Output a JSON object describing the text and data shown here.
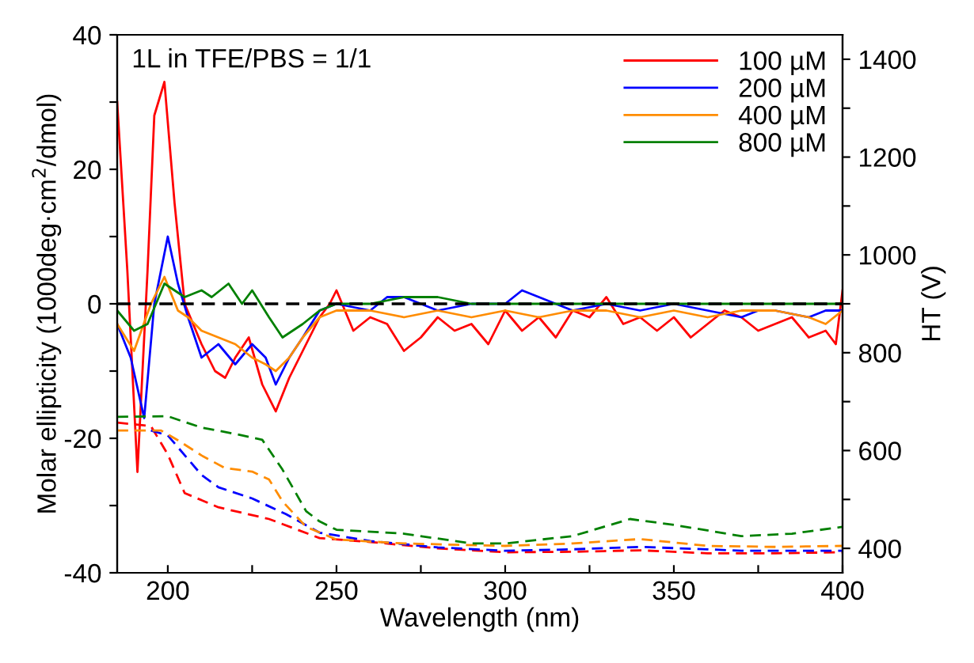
{
  "chart_data": {
    "type": "line",
    "xlabel": "Wavelength (nm)",
    "ylabel": "Molar ellipticity (1000deg·cm$^{2}$/dmol)",
    "y2label": "HT (V)",
    "annotations": [
      "1L in TFE/PBS = 1/1"
    ],
    "xlim": [
      185,
      400
    ],
    "xticks": [
      200,
      {
        "value": 225,
        "label": null
      },
      250,
      {
        "value": 275,
        "label": null
      },
      300,
      {
        "value": 325,
        "label": null
      },
      350,
      {
        "value": 375,
        "label": null
      },
      400
    ],
    "ylim": [
      -40,
      40
    ],
    "yticks": [
      -40,
      {
        "value": -30,
        "label": null
      },
      -20,
      {
        "value": -10,
        "label": null
      },
      0,
      {
        "value": 10,
        "label": null
      },
      20,
      {
        "value": 30,
        "label": null
      },
      40
    ],
    "y2lim": [
      350,
      1450
    ],
    "y2ticks": [
      400,
      {
        "value": 500,
        "label": null
      },
      600,
      {
        "value": 700,
        "label": null
      },
      800,
      {
        "value": 900,
        "label": null
      },
      1000,
      {
        "value": 1100,
        "label": null
      },
      1200,
      {
        "value": 1300,
        "label": null
      },
      1400
    ],
    "ref_lines": [
      {
        "axis": "y",
        "value": 0,
        "color": "#000000",
        "line_style": "dashed"
      }
    ],
    "legend": "top right",
    "grid": false,
    "series": [
      {
        "name": "100 µM",
        "color": "#ff0000",
        "x": [
          185,
          188,
          191,
          194,
          196,
          199,
          202,
          205,
          210,
          214,
          217,
          220,
          224,
          228,
          232,
          236,
          240,
          245,
          248,
          250,
          255,
          260,
          265,
          270,
          275,
          280,
          285,
          290,
          295,
          300,
          305,
          310,
          315,
          320,
          325,
          330,
          335,
          340,
          345,
          350,
          355,
          360,
          365,
          370,
          375,
          380,
          385,
          390,
          395,
          398,
          400
        ],
        "values": [
          30,
          5,
          -25,
          5,
          28,
          33,
          15,
          0,
          -6,
          -10,
          -11,
          -8,
          -5,
          -12,
          -16,
          -11,
          -7,
          -2,
          0,
          2,
          -4,
          -2,
          -3,
          -7,
          -5,
          -2,
          -4,
          -3,
          -6,
          -1,
          -4,
          -2,
          -5,
          -1,
          -2,
          1,
          -3,
          -2,
          -4,
          -2,
          -5,
          -3,
          -1,
          -2,
          -4,
          -3,
          -2,
          -5,
          -4,
          -6,
          2
        ]
      },
      {
        "name": "200 µM",
        "color": "#0000ff",
        "x": [
          185,
          189,
          193,
          196,
          200,
          203,
          206,
          210,
          215,
          220,
          225,
          229,
          232,
          236,
          240,
          245,
          250,
          260,
          265,
          270,
          280,
          290,
          300,
          305,
          310,
          320,
          330,
          340,
          350,
          360,
          370,
          375,
          380,
          390,
          395,
          400
        ],
        "values": [
          -3,
          -8,
          -17,
          0,
          10,
          3,
          -2,
          -8,
          -6,
          -9,
          -6,
          -8,
          -12,
          -8,
          -5,
          -1,
          0,
          -1,
          1,
          1,
          -1,
          0,
          0,
          2,
          1,
          -1,
          0,
          -1,
          0,
          -1,
          -2,
          -1,
          -1,
          -2,
          -1,
          -1
        ]
      },
      {
        "name": "400 µM",
        "color": "#ff8c00",
        "x": [
          185,
          190,
          195,
          199,
          203,
          206,
          210,
          215,
          220,
          225,
          229,
          232,
          236,
          240,
          245,
          250,
          260,
          270,
          280,
          290,
          300,
          310,
          320,
          330,
          340,
          350,
          360,
          370,
          380,
          390,
          395,
          400
        ],
        "values": [
          -3,
          -7,
          0,
          4,
          -1,
          -2,
          -4,
          -5,
          -6,
          -8,
          -9,
          -10,
          -8,
          -5,
          -2,
          -1,
          -1,
          -2,
          -1,
          -2,
          -1,
          -2,
          -1,
          -1,
          -2,
          -1,
          -2,
          -1,
          -1,
          -2,
          -3,
          -1
        ]
      },
      {
        "name": "800 µM",
        "color": "#008000",
        "x": [
          185,
          190,
          194,
          199,
          205,
          210,
          213,
          218,
          222,
          225,
          230,
          234,
          240,
          245,
          250,
          260,
          270,
          280,
          290,
          300,
          310,
          320,
          330,
          340,
          350,
          360,
          370,
          380,
          390,
          400
        ],
        "values": [
          -1,
          -4,
          -3,
          3,
          1,
          2,
          1,
          3,
          0,
          2,
          -2,
          -5,
          -3,
          -1,
          0,
          0,
          1,
          1,
          0,
          0,
          0,
          0,
          0,
          0,
          0,
          0,
          0,
          0,
          0,
          0
        ]
      },
      {
        "color": "#ff0000",
        "axis": "y2",
        "line_style": "dashed",
        "x": [
          185,
          195,
          200,
          205,
          215,
          230,
          245,
          260,
          280,
          300,
          320,
          340,
          360,
          380,
          400
        ],
        "values": [
          657,
          650,
          592,
          513,
          484,
          460,
          421,
          413,
          400,
          392,
          393,
          396,
          390,
          390,
          392
        ]
      },
      {
        "color": "#0000ff",
        "axis": "y2",
        "line_style": "dashed",
        "x": [
          195,
          200,
          210,
          215,
          225,
          235,
          245,
          260,
          280,
          300,
          320,
          340,
          360,
          370,
          400
        ],
        "values": [
          641,
          631,
          550,
          525,
          502,
          470,
          432,
          415,
          402,
          395,
          398,
          403,
          398,
          395,
          395
        ]
      },
      {
        "color": "#ff8c00",
        "axis": "y2",
        "line_style": "dashed",
        "x": [
          185,
          198,
          203,
          210,
          217,
          225,
          230,
          234,
          241,
          250,
          270,
          300,
          320,
          340,
          360,
          380,
          400
        ],
        "values": [
          641,
          641,
          621,
          590,
          564,
          557,
          541,
          496,
          444,
          418,
          410,
          405,
          410,
          419,
          405,
          403,
          405
        ]
      },
      {
        "color": "#008000",
        "axis": "y2",
        "line_style": "dashed",
        "x": [
          185,
          200,
          210,
          220,
          228,
          234,
          241,
          245,
          250,
          270,
          290,
          300,
          320,
          337,
          350,
          370,
          385,
          400
        ],
        "values": [
          669,
          670,
          647,
          634,
          622,
          561,
          476,
          455,
          438,
          430,
          410,
          410,
          425,
          460,
          448,
          425,
          430,
          444
        ]
      }
    ]
  }
}
